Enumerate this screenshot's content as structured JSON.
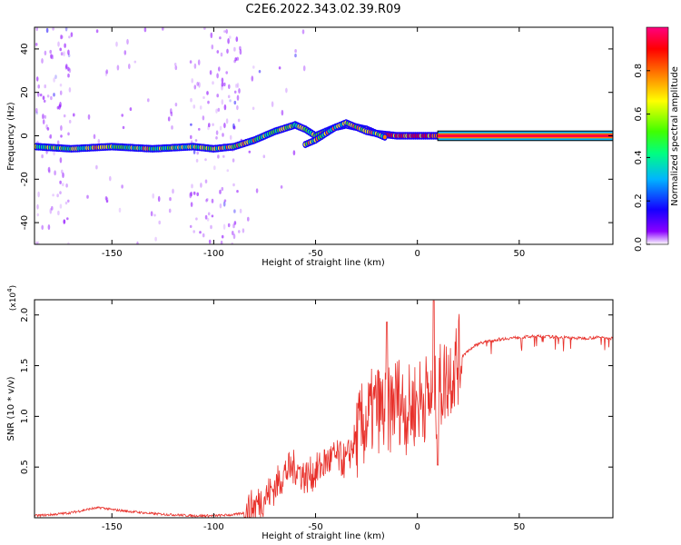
{
  "title": "C2E6.2022.343.02.39.R09",
  "chart_data": [
    {
      "type": "heatmap",
      "xlabel": "Height of straight line (km)",
      "ylabel": "Frequency (Hz)",
      "xlim": [
        -188,
        96
      ],
      "ylim": [
        -50,
        50
      ],
      "xticks": [
        -150,
        -100,
        -50,
        0,
        50
      ],
      "xtick_labels": [
        "-150",
        "-100",
        "-50",
        "0",
        "50"
      ],
      "yticks": [
        -40,
        -20,
        0,
        20,
        40
      ],
      "ytick_labels": [
        "-40",
        "-20",
        "0",
        "20",
        "40"
      ],
      "colorbar": {
        "label": "Normalized spectral amplitude",
        "range": [
          0,
          1
        ],
        "ticks": [
          0.0,
          0.2,
          0.4,
          0.6,
          0.8
        ],
        "tick_labels": [
          "0.0",
          "0.2",
          "0.4",
          "0.6",
          "0.8"
        ],
        "colors": [
          "#ffffff",
          "#8a00ff",
          "#1400ff",
          "#00b4ff",
          "#00ff80",
          "#40ff00",
          "#ffff00",
          "#ff8000",
          "#ff0000",
          "#ff0080"
        ]
      },
      "ridge": {
        "x": [
          -187,
          -170,
          -150,
          -130,
          -110,
          -100,
          -90,
          -80,
          -70,
          -60,
          -55,
          -50,
          -45,
          -40,
          -35,
          -30,
          -25,
          -20,
          -10,
          0,
          10,
          96
        ],
        "y": [
          -5,
          -6,
          -5,
          -6,
          -5,
          -6,
          -5,
          -2,
          2,
          5,
          3,
          0,
          2,
          4,
          5,
          4,
          3,
          1,
          0,
          0,
          0,
          0
        ]
      },
      "branch": {
        "x": [
          -55,
          -50,
          -45,
          -40,
          -35,
          -30,
          -25,
          -20,
          -15
        ],
        "y": [
          -4,
          -2,
          1,
          4,
          6,
          4,
          2,
          1,
          -1
        ]
      },
      "grid": false
    },
    {
      "type": "line",
      "xlabel": "Height of straight line (km)",
      "ylabel": "SNR (10 * v/v)",
      "y_multiplier": "(x10",
      "y_multiplier_exp": "4",
      "y_multiplier_close": ")",
      "xlim": [
        -188,
        96
      ],
      "ylim": [
        0,
        2.15
      ],
      "xticks": [
        -150,
        -100,
        -50,
        0,
        50
      ],
      "xtick_labels": [
        "-150",
        "-100",
        "-50",
        "0",
        "50"
      ],
      "yticks": [
        0.5,
        1.0,
        1.5,
        2.0
      ],
      "ytick_labels": [
        "0.5",
        "1.0",
        "1.5",
        "2.0"
      ],
      "series": [
        {
          "color": "#e8302a",
          "x": [
            -188,
            -180,
            -170,
            -160,
            -155,
            -150,
            -145,
            -140,
            -130,
            -120,
            -110,
            -100,
            -90,
            -85,
            -80,
            -75,
            -70,
            -65,
            -60,
            -55,
            -50,
            -45,
            -40,
            -35,
            -30,
            -25,
            -20,
            -15,
            -10,
            -5,
            0,
            5,
            8,
            10,
            15,
            20,
            25,
            30,
            40,
            50,
            60,
            70,
            80,
            90,
            96
          ],
          "y": [
            0.02,
            0.03,
            0.05,
            0.09,
            0.1,
            0.08,
            0.07,
            0.06,
            0.04,
            0.03,
            0.02,
            0.02,
            0.03,
            0.05,
            0.12,
            0.2,
            0.3,
            0.45,
            0.5,
            0.4,
            0.45,
            0.55,
            0.6,
            0.55,
            0.8,
            0.95,
            1.1,
            1.0,
            1.2,
            1.05,
            1.15,
            1.2,
            1.1,
            1.25,
            1.4,
            1.55,
            1.65,
            1.72,
            1.76,
            1.78,
            1.79,
            1.78,
            1.77,
            1.78,
            1.77
          ]
        }
      ],
      "grid": false
    }
  ]
}
